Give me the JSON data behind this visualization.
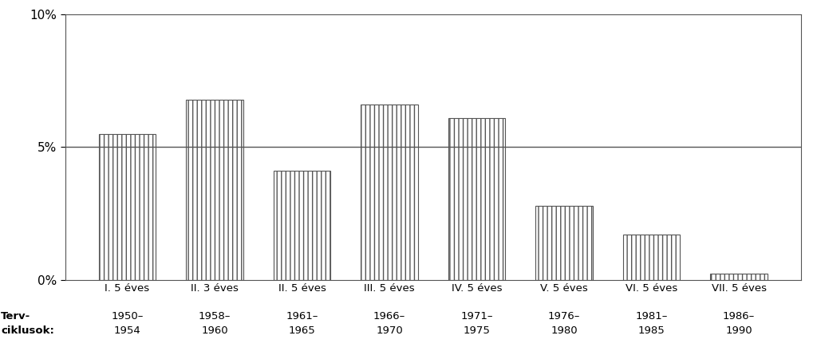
{
  "plan_names": [
    "I. 5 éves",
    "II. 3 éves",
    "II. 5 éves",
    "III. 5 éves",
    "IV. 5 éves",
    "V. 5 éves",
    "VI. 5 éves",
    "VII. 5 éves"
  ],
  "year_line1": [
    "1950–",
    "1958–",
    "1961–",
    "1966–",
    "1971–",
    "1976–",
    "1981–",
    "1986–"
  ],
  "year_line2": [
    "1954",
    "1960",
    "1965",
    "1970",
    "1975",
    "1980",
    "1985",
    "1990"
  ],
  "values": [
    5.5,
    6.8,
    4.1,
    6.6,
    6.1,
    2.8,
    1.7,
    0.25
  ],
  "bar_color": "#ffffff",
  "bar_edgecolor": "#555555",
  "hatch": "|||",
  "reference_line_y": 5.0,
  "reference_line_color": "#555555",
  "ylim": [
    0,
    10
  ],
  "yticks": [
    0,
    5,
    10
  ],
  "ytick_labels": [
    "0%",
    "5%",
    "10%"
  ],
  "xlabel_left_line1": "Terv-",
  "xlabel_left_line2": "ciklusok:",
  "background_color": "#ffffff",
  "bar_width": 0.65,
  "label_fontsize": 9.5,
  "ytick_fontsize": 11
}
